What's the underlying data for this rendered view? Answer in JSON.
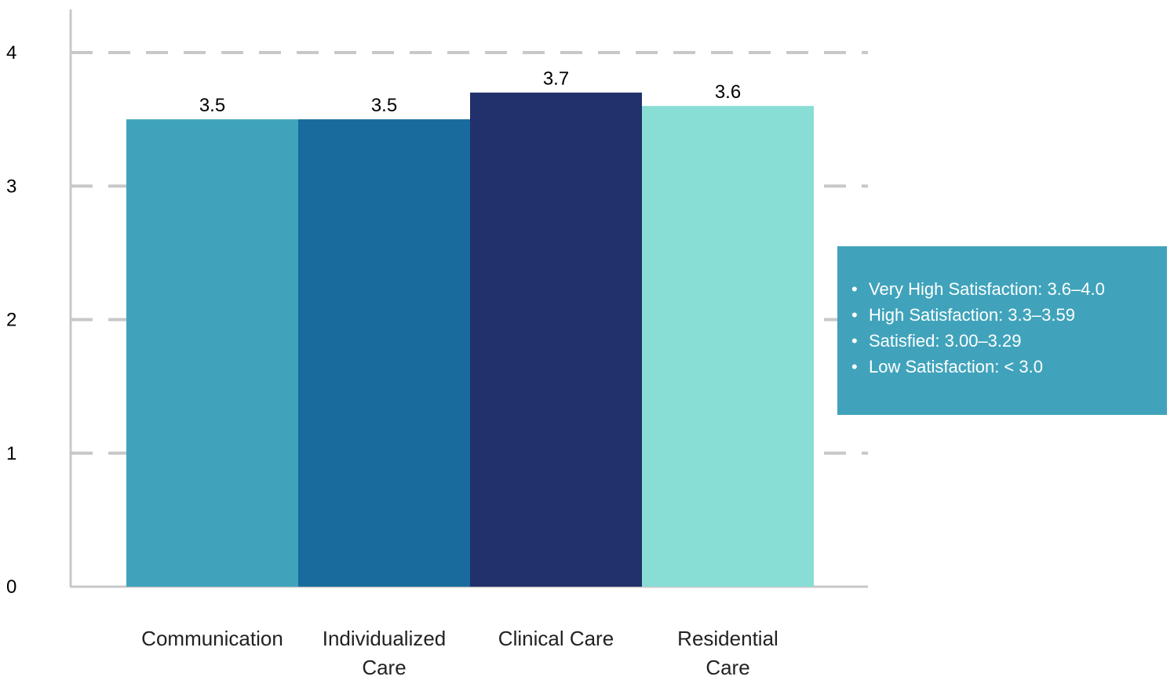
{
  "chart_data": {
    "type": "bar",
    "title": "",
    "xlabel": "",
    "ylabel": "",
    "categories": [
      "Communication",
      "Individualized Care",
      "Clinical Care",
      "Residential Care"
    ],
    "category_lines": [
      [
        "Communication"
      ],
      [
        "Individualized",
        "Care"
      ],
      [
        "Clinical Care"
      ],
      [
        "Residential",
        "Care"
      ]
    ],
    "values": [
      3.5,
      3.5,
      3.7,
      3.6
    ],
    "value_labels": [
      "3.5",
      "3.5",
      "3.7",
      "3.6"
    ],
    "ylim": [
      0,
      4
    ],
    "yticks": [
      0,
      1,
      2,
      3,
      4
    ],
    "ytick_labels": [
      "0",
      "1",
      "2",
      "3",
      "4"
    ],
    "grid": "horizontal dashed",
    "bar_colors": [
      "#40a3bb",
      "#186b9c",
      "#22306b",
      "#88ddd5"
    ],
    "legend": {
      "placement": "right",
      "background": "#40a3bb",
      "bullet": "•",
      "items": [
        "Very High Satisfaction: 3.6–4.0",
        "High Satisfaction: 3.3–3.59",
        "Satisfied: 3.00–3.29",
        "Low Satisfaction: < 3.0"
      ]
    }
  }
}
